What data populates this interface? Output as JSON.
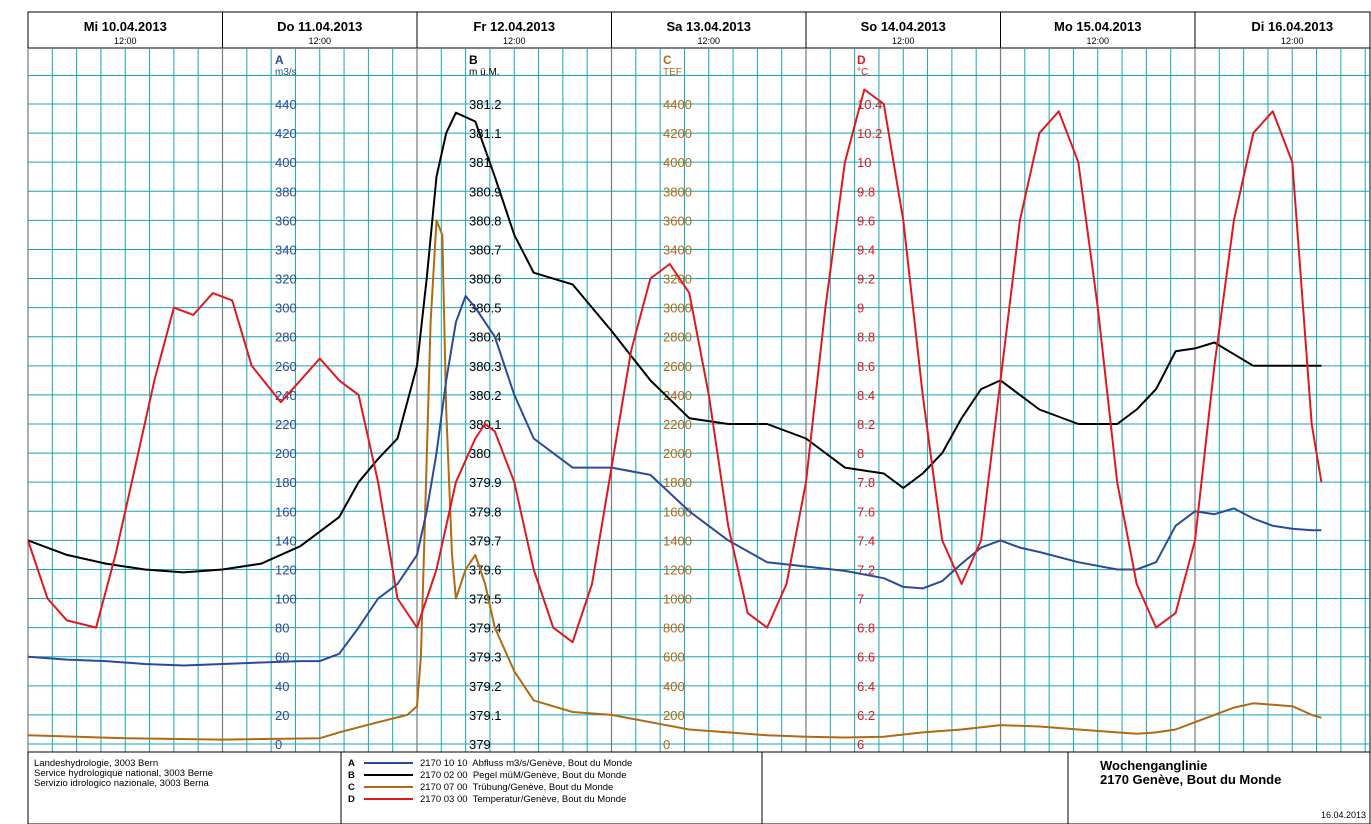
{
  "chart_data": {
    "type": "line",
    "title": "Wochenganglinie",
    "station": "2170 Genève, Bout du Monde",
    "print_date": "16.04.2013",
    "noon_label": "12:00",
    "days": [
      "Mi 10.04.2013",
      "Do 11.04.2013",
      "Fr 12.04.2013",
      "Sa 13.04.2013",
      "So 14.04.2013",
      "Mo 15.04.2013",
      "Di 16.04.2013"
    ],
    "x_range_days": [
      0,
      6.75
    ],
    "grid": true,
    "colors": {
      "A": "#2b4a9a",
      "B": "#000000",
      "C": "#b06a14",
      "D": "#e0191e",
      "grid_minor": "#17a6b4",
      "grid_major": "#7a7a7a"
    },
    "axes": [
      {
        "id": "A",
        "letter": "A",
        "unit": "m3/s",
        "min": 0,
        "max": 440,
        "step": 20,
        "ticks": [
          "0",
          "20",
          "40",
          "60",
          "80",
          "100",
          "120",
          "140",
          "160",
          "180",
          "200",
          "220",
          "240",
          "260",
          "280",
          "300",
          "320",
          "340",
          "360",
          "380",
          "400",
          "420",
          "440"
        ]
      },
      {
        "id": "B",
        "letter": "B",
        "unit": "m ü.M.",
        "min": 379.0,
        "max": 381.2,
        "step": 0.1,
        "ticks": [
          "379",
          "379.1",
          "379.2",
          "379.3",
          "379.4",
          "379.5",
          "379.6",
          "379.7",
          "379.8",
          "379.9",
          "380",
          "380.1",
          "380.2",
          "380.3",
          "380.4",
          "380.5",
          "380.6",
          "380.7",
          "380.8",
          "380.9",
          "381",
          "381.1",
          "381.2"
        ]
      },
      {
        "id": "C",
        "letter": "C",
        "unit": "TEF",
        "min": 0,
        "max": 4400,
        "step": 200,
        "ticks": [
          "0",
          "200",
          "400",
          "600",
          "800",
          "1000",
          "1200",
          "1400",
          "1600",
          "1800",
          "2000",
          "2200",
          "2400",
          "2600",
          "2800",
          "3000",
          "3200",
          "3400",
          "3600",
          "3800",
          "4000",
          "4200",
          "4400"
        ]
      },
      {
        "id": "D",
        "letter": "D",
        "unit": "°C",
        "min": 6.0,
        "max": 10.4,
        "step": 0.2,
        "ticks": [
          "6",
          "6.2",
          "6.4",
          "6.6",
          "6.8",
          "7",
          "7.2",
          "7.4",
          "7.6",
          "7.8",
          "8",
          "8.2",
          "8.4",
          "8.6",
          "8.8",
          "9",
          "9.2",
          "9.4",
          "9.6",
          "9.8",
          "10",
          "10.2",
          "10.4"
        ]
      }
    ],
    "series": [
      {
        "id": "A",
        "legend": "2170 10 10  Abfluss m3/s/Genève, Bout du Monde",
        "x": [
          0,
          0.2,
          0.4,
          0.6,
          0.8,
          1.0,
          1.2,
          1.4,
          1.5,
          1.6,
          1.7,
          1.8,
          1.9,
          2.0,
          2.05,
          2.1,
          2.15,
          2.2,
          2.25,
          2.3,
          2.4,
          2.5,
          2.6,
          2.8,
          3.0,
          3.2,
          3.4,
          3.6,
          3.8,
          4.0,
          4.2,
          4.4,
          4.5,
          4.6,
          4.7,
          4.8,
          4.9,
          5.0,
          5.1,
          5.2,
          5.4,
          5.6,
          5.7,
          5.8,
          5.9,
          6.0,
          6.1,
          6.2,
          6.3,
          6.4,
          6.5,
          6.6,
          6.65
        ],
        "y": [
          60,
          58,
          57,
          55,
          54,
          55,
          56,
          57,
          57,
          62,
          80,
          100,
          110,
          130,
          160,
          200,
          250,
          290,
          308,
          300,
          280,
          240,
          210,
          190,
          190,
          185,
          160,
          140,
          125,
          122,
          119,
          114,
          108,
          107,
          112,
          124,
          135,
          140,
          135,
          132,
          125,
          120,
          120,
          125,
          150,
          160,
          158,
          162,
          155,
          150,
          148,
          147,
          147
        ]
      },
      {
        "id": "B",
        "legend": "2170 02 00  Pegel müM/Genève, Bout du Monde",
        "x": [
          0,
          0.2,
          0.4,
          0.6,
          0.8,
          1.0,
          1.2,
          1.4,
          1.6,
          1.7,
          1.8,
          1.9,
          2.0,
          2.05,
          2.1,
          2.15,
          2.2,
          2.3,
          2.4,
          2.5,
          2.6,
          2.8,
          3.0,
          3.2,
          3.4,
          3.6,
          3.8,
          4.0,
          4.2,
          4.4,
          4.5,
          4.6,
          4.7,
          4.8,
          4.9,
          5.0,
          5.1,
          5.2,
          5.4,
          5.6,
          5.7,
          5.8,
          5.9,
          6.0,
          6.1,
          6.2,
          6.3,
          6.4,
          6.5,
          6.6,
          6.65
        ],
        "y": [
          379.7,
          379.65,
          379.62,
          379.6,
          379.59,
          379.6,
          379.62,
          379.68,
          379.78,
          379.9,
          379.98,
          380.05,
          380.3,
          380.6,
          380.95,
          381.1,
          381.17,
          381.14,
          380.95,
          380.75,
          380.62,
          380.58,
          380.42,
          380.25,
          380.12,
          380.1,
          380.1,
          380.05,
          379.95,
          379.93,
          379.88,
          379.93,
          380.0,
          380.12,
          380.22,
          380.25,
          380.2,
          380.15,
          380.1,
          380.1,
          380.15,
          380.22,
          380.35,
          380.36,
          380.38,
          380.34,
          380.3,
          380.3,
          380.3,
          380.3,
          380.3
        ]
      },
      {
        "id": "C",
        "legend": "2170 07 00  Trübung/Genève, Bout du Monde",
        "x": [
          0,
          0.5,
          1.0,
          1.5,
          1.6,
          1.8,
          1.95,
          2.0,
          2.02,
          2.04,
          2.07,
          2.1,
          2.13,
          2.15,
          2.18,
          2.2,
          2.25,
          2.3,
          2.35,
          2.4,
          2.5,
          2.6,
          2.8,
          3.0,
          3.2,
          3.4,
          3.6,
          3.8,
          4.0,
          4.2,
          4.4,
          4.6,
          4.8,
          5.0,
          5.2,
          5.4,
          5.6,
          5.7,
          5.8,
          5.9,
          6.0,
          6.1,
          6.2,
          6.3,
          6.4,
          6.5,
          6.55,
          6.6,
          6.65
        ],
        "y": [
          60,
          40,
          30,
          40,
          80,
          150,
          200,
          260,
          600,
          1500,
          2900,
          3600,
          3500,
          2300,
          1300,
          1000,
          1200,
          1300,
          1100,
          800,
          500,
          300,
          220,
          200,
          150,
          100,
          80,
          60,
          50,
          45,
          50,
          80,
          100,
          130,
          120,
          100,
          80,
          70,
          80,
          100,
          150,
          200,
          250,
          280,
          270,
          260,
          230,
          200,
          180
        ]
      },
      {
        "id": "D",
        "legend": "2170 03 00  Temperatur/Genève, Bout du Monde",
        "x": [
          0,
          0.1,
          0.2,
          0.35,
          0.45,
          0.55,
          0.65,
          0.75,
          0.85,
          0.95,
          1.05,
          1.15,
          1.3,
          1.4,
          1.5,
          1.6,
          1.7,
          1.8,
          1.9,
          2.0,
          2.1,
          2.2,
          2.3,
          2.35,
          2.4,
          2.5,
          2.6,
          2.7,
          2.8,
          2.9,
          3.0,
          3.1,
          3.2,
          3.3,
          3.4,
          3.5,
          3.6,
          3.7,
          3.8,
          3.9,
          4.0,
          4.1,
          4.2,
          4.3,
          4.4,
          4.5,
          4.6,
          4.7,
          4.8,
          4.9,
          5.0,
          5.1,
          5.2,
          5.3,
          5.4,
          5.5,
          5.6,
          5.7,
          5.8,
          5.9,
          6.0,
          6.1,
          6.2,
          6.3,
          6.4,
          6.5,
          6.6,
          6.65
        ],
        "y": [
          7.4,
          7.0,
          6.85,
          6.8,
          7.3,
          7.9,
          8.5,
          9.0,
          8.95,
          9.1,
          9.05,
          8.6,
          8.35,
          8.5,
          8.65,
          8.5,
          8.4,
          7.8,
          7.0,
          6.8,
          7.2,
          7.8,
          8.1,
          8.2,
          8.15,
          7.8,
          7.2,
          6.8,
          6.7,
          7.1,
          7.9,
          8.7,
          9.2,
          9.3,
          9.1,
          8.4,
          7.5,
          6.9,
          6.8,
          7.1,
          7.8,
          9.0,
          10.0,
          10.5,
          10.4,
          9.6,
          8.4,
          7.4,
          7.1,
          7.4,
          8.5,
          9.6,
          10.2,
          10.35,
          10.0,
          9.0,
          7.8,
          7.1,
          6.8,
          6.9,
          7.4,
          8.6,
          9.6,
          10.2,
          10.35,
          10.0,
          8.2,
          7.8
        ]
      }
    ]
  },
  "footer": {
    "org_line1": "Landeshydrologie, 3003 Bern",
    "org_line2": "Service hydrologique national, 3003 Berne",
    "org_line3": "Servizio idrologico nazionale, 3003 Berna",
    "legend": [
      {
        "letter": "A",
        "text": "2170 10 10  Abfluss m3/s/Genève, Bout du Monde",
        "color": "#2b4a9a"
      },
      {
        "letter": "B",
        "text": "2170 02 00  Pegel müM/Genève, Bout du Monde",
        "color": "#000000"
      },
      {
        "letter": "C",
        "text": "2170 07 00  Trübung/Genève, Bout du Monde",
        "color": "#b06a14"
      },
      {
        "letter": "D",
        "text": "2170 03 00  Temperatur/Genève, Bout du Monde",
        "color": "#e0191e"
      }
    ]
  }
}
